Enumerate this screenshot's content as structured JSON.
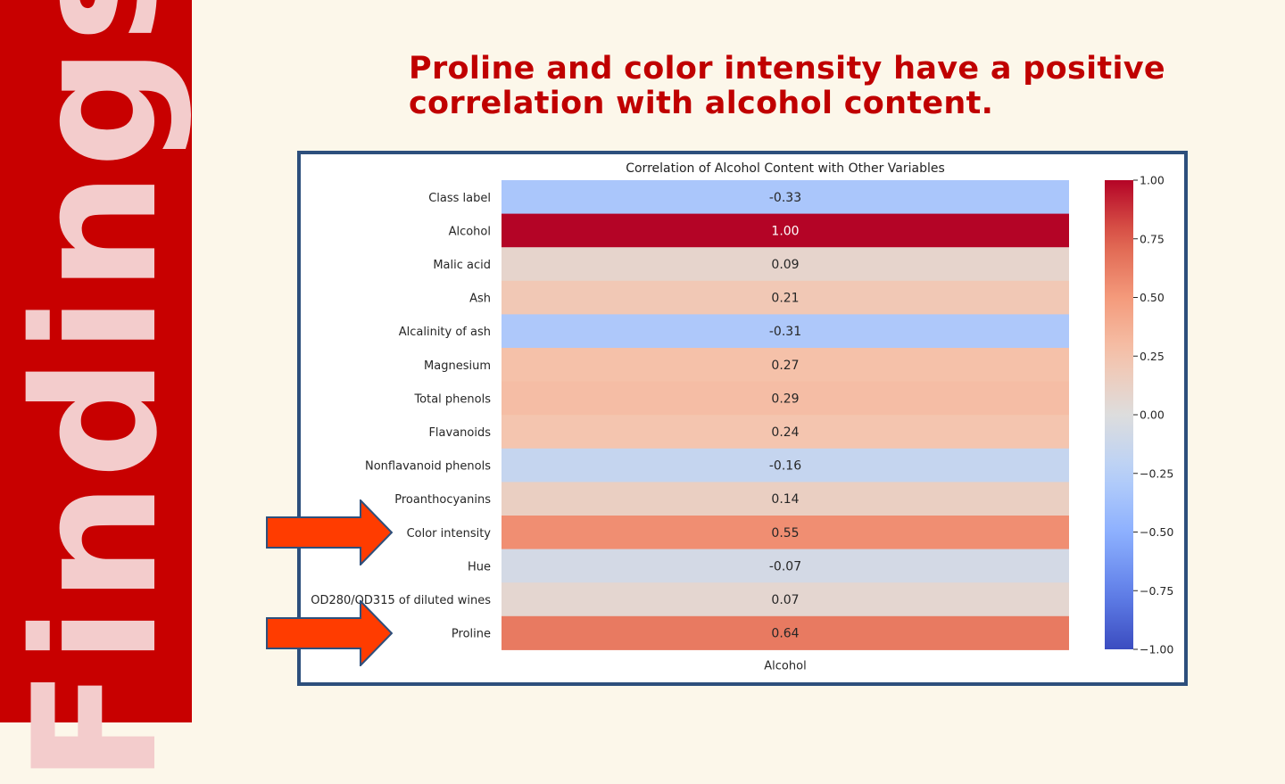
{
  "slide": {
    "sidebar_title": "Findings",
    "headline": "Proline and color intensity have a positive correlation with alcohol content.",
    "colors": {
      "sidebar": "#c80000",
      "sidebar_text": "#f3cccc",
      "headline": "#c00000",
      "background": "#fcf7ea",
      "frame": "#2d4f7c",
      "arrow_fill": "#ff3c00",
      "arrow_stroke": "#2d4f7c"
    },
    "arrows": [
      {
        "points_to": "Color intensity",
        "icon": "right-arrow-icon"
      },
      {
        "points_to": "Proline",
        "icon": "right-arrow-icon"
      }
    ]
  },
  "chart_data": {
    "type": "heatmap",
    "title": "Correlation of Alcohol Content with Other Variables",
    "xlabel": "Alcohol",
    "colormap": "coolwarm",
    "rows": [
      "Class label",
      "Alcohol",
      "Malic acid",
      "Ash",
      "Alcalinity of ash",
      "Magnesium",
      "Total phenols",
      "Flavanoids",
      "Nonflavanoid phenols",
      "Proanthocyanins",
      "Color intensity",
      "Hue",
      "OD280/OD315 of diluted wines",
      "Proline"
    ],
    "values": [
      -0.33,
      1.0,
      0.09,
      0.21,
      -0.31,
      0.27,
      0.29,
      0.24,
      -0.16,
      0.14,
      0.55,
      -0.07,
      0.07,
      0.64
    ],
    "value_labels": [
      "-0.33",
      "1.00",
      "0.09",
      "0.21",
      "-0.31",
      "0.27",
      "0.29",
      "0.24",
      "-0.16",
      "0.14",
      "0.55",
      "-0.07",
      "0.07",
      "0.64"
    ],
    "colorbar": {
      "range": [
        -1.0,
        1.0
      ],
      "ticks": [
        1.0,
        0.75,
        0.5,
        0.25,
        0.0,
        -0.25,
        -0.5,
        -0.75,
        -1.0
      ],
      "tick_labels": [
        "1.00",
        "0.75",
        "0.50",
        "0.25",
        "0.00",
        "−0.25",
        "−0.50",
        "−0.75",
        "−1.00"
      ]
    }
  }
}
